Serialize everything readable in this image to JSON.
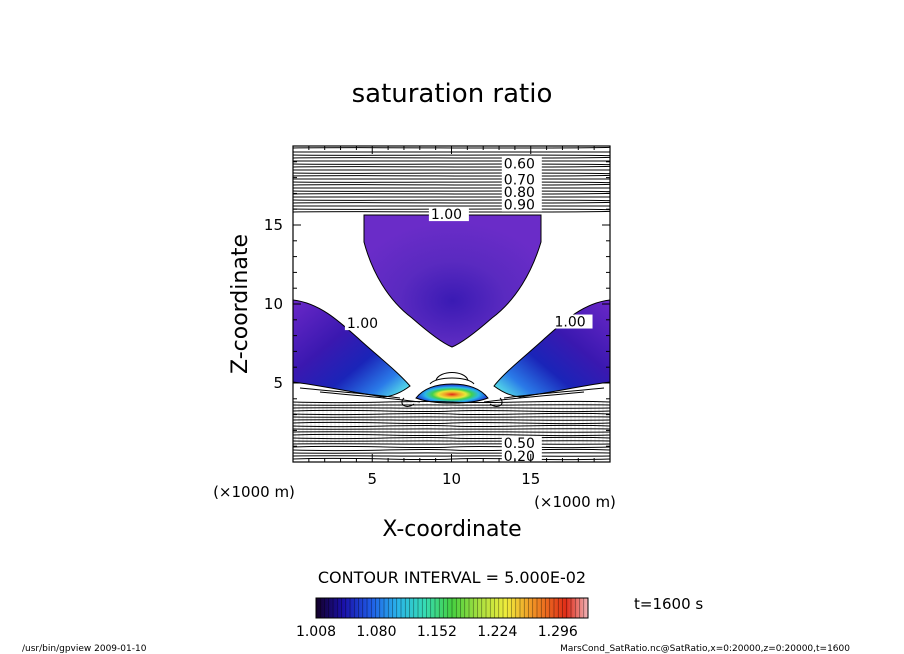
{
  "chart_data": {
    "type": "contour",
    "title": "saturation ratio",
    "xlabel": "X-coordinate",
    "ylabel": "Z-coordinate",
    "x_unit_label": "(×1000 m)",
    "y_unit_label": "(×1000 m)",
    "xlim": [
      0,
      20
    ],
    "ylim": [
      0,
      20
    ],
    "x_ticks": [
      5,
      10,
      15
    ],
    "y_ticks": [
      5,
      10,
      15
    ],
    "contour_interval_text": "CONTOUR INTERVAL = 5.000E-02",
    "time_text": "t=1600 s",
    "colorbar": {
      "tick_labels": [
        "1.008",
        "1.080",
        "1.152",
        "1.224",
        "1.296"
      ],
      "min": 1.008,
      "max": 1.332,
      "colormap": [
        "#140028",
        "#1a10a8",
        "#1f5ae6",
        "#2ab4ea",
        "#36dcb4",
        "#46d040",
        "#a8e040",
        "#f0ec3c",
        "#f09024",
        "#e02c18",
        "#f0b4b8"
      ]
    },
    "contour_labels": [
      {
        "text": "0.60",
        "x": 13.3,
        "y": 18.7
      },
      {
        "text": "0.70",
        "x": 13.3,
        "y": 17.7
      },
      {
        "text": "0.80",
        "x": 13.3,
        "y": 16.9
      },
      {
        "text": "0.90",
        "x": 13.3,
        "y": 16.1
      },
      {
        "text": "1.00",
        "x": 8.7,
        "y": 15.5
      },
      {
        "text": "1.00",
        "x": 3.4,
        "y": 8.6
      },
      {
        "text": "1.00",
        "x": 16.5,
        "y": 8.7
      },
      {
        "text": "0.50",
        "x": 13.3,
        "y": 1.0
      },
      {
        "text": "0.20",
        "x": 13.3,
        "y": 0.2
      }
    ],
    "regions": [
      {
        "name": "upper",
        "peak": 1.05,
        "span_x": [
          4.5,
          15.5
        ],
        "span_z": [
          7.3,
          15.5
        ]
      },
      {
        "name": "left-wedge",
        "peak": 1.14,
        "span_x": [
          0,
          7.2
        ],
        "span_z": [
          3.8,
          10.2
        ]
      },
      {
        "name": "right-wedge",
        "peak": 1.14,
        "span_x": [
          12.8,
          20
        ],
        "span_z": [
          3.8,
          10.2
        ]
      },
      {
        "name": "core",
        "peak": 1.33,
        "span_x": [
          8,
          12
        ],
        "span_z": [
          3.6,
          4.6
        ]
      }
    ]
  },
  "footer": {
    "left": "/usr/bin/gpview  2009-01-10",
    "right": "MarsCond_SatRatio.nc@SatRatio,x=0:20000,z=0:20000,t=1600"
  }
}
